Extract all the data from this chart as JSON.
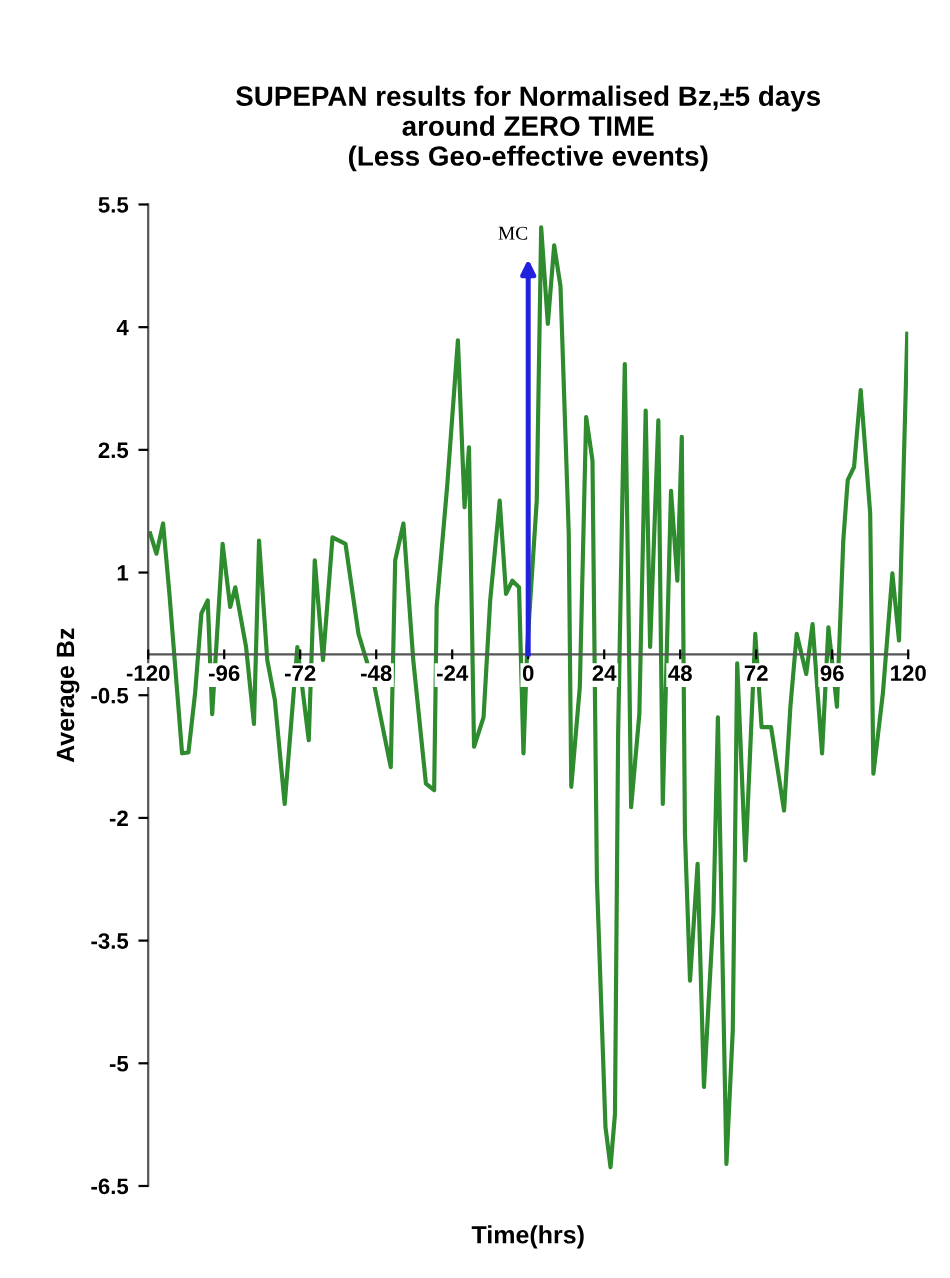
{
  "chart_data": {
    "type": "line",
    "title": "SUPEPAN results for Normalised Bz,±5 days\naround ZERO TIME\n(Less Geo-effective events)",
    "xlabel": "Time(hrs)",
    "ylabel": "Average Bz",
    "series": [
      {
        "color": "#2e8b2e",
        "x": [
          -119.4,
          -117.4,
          -115.3,
          -113.3,
          -109.3,
          -107.3,
          -105.2,
          -103.2,
          -101.2,
          -99.8,
          -96.5,
          -94.1,
          -92.5,
          -89.1,
          -86.6,
          -85,
          -82.4,
          -80,
          -76.9,
          -72.9,
          -69.3,
          -67.4,
          -64.8,
          -61.8,
          -57.7,
          -53.6,
          -48.5,
          -43.4,
          -42,
          -39.4,
          -36.3,
          -32.3,
          -29.7,
          -28.9,
          -25.6,
          -22.2,
          -20.1,
          -18.7,
          -17.1,
          -14.1,
          -12,
          -9,
          -7,
          -5,
          -2.9,
          -1.5,
          -0.3,
          2.7,
          4.1,
          6.2,
          8.2,
          10.2,
          12.8,
          13.6,
          16.3,
          18.3,
          20.3,
          21.7,
          24.4,
          26,
          27.4,
          28.4,
          30.5,
          31.5,
          32.5,
          35.1,
          37.1,
          38.5,
          41.1,
          42.5,
          45.1,
          47.1,
          48.5,
          49.5,
          51.1,
          53.5,
          55.5,
          58.5,
          59.9,
          62.6,
          64.6,
          66,
          68.6,
          71.7,
          73.7,
          76.7,
          80.8,
          82.8,
          84.8,
          87.8,
          89.8,
          92.8,
          94.8,
          97.5,
          99.5,
          100.9,
          102.9,
          105,
          108,
          109,
          112,
          115,
          117.1,
          119.7
        ],
        "values": [
          1.48,
          1.23,
          1.6,
          0.74,
          -1.21,
          -1.2,
          -0.48,
          0.5,
          0.66,
          -0.73,
          1.35,
          0.58,
          0.82,
          0.09,
          -0.85,
          1.39,
          -0.07,
          -0.56,
          -1.83,
          0.09,
          -1.05,
          1.15,
          -0.07,
          1.43,
          1.35,
          0.25,
          -0.4,
          -1.38,
          1.15,
          1.6,
          -0.07,
          -1.58,
          -1.66,
          0.58,
          2.05,
          3.84,
          1.8,
          2.53,
          -1.13,
          -0.77,
          0.66,
          1.88,
          0.74,
          0.9,
          0.82,
          -1.21,
          0.09,
          1.88,
          5.22,
          4.04,
          5.0,
          4.5,
          1.48,
          -1.62,
          -0.4,
          2.9,
          2.37,
          -2.76,
          -5.78,
          -6.27,
          -5.62,
          -0.97,
          3.55,
          1.07,
          -1.87,
          -0.73,
          2.98,
          0.09,
          2.86,
          -1.83,
          2.0,
          0.9,
          2.66,
          -2.19,
          -3.99,
          -2.56,
          -5.29,
          -3.18,
          -0.77,
          -6.23,
          -4.6,
          -0.11,
          -2.52,
          0.25,
          -0.89,
          -0.89,
          -1.91,
          -0.64,
          0.25,
          -0.24,
          0.37,
          -1.21,
          0.33,
          -0.64,
          1.39,
          2.13,
          2.29,
          3.23,
          1.72,
          -1.46,
          -0.48,
          0.99,
          0.17,
          3.92
        ]
      }
    ],
    "xlim": [
      -120,
      120
    ],
    "xticks": [
      -120,
      -96,
      -72,
      -48,
      -24,
      0,
      24,
      48,
      72,
      96,
      120
    ],
    "ylim": [
      -6.5,
      5.5
    ],
    "yticks": [
      -6.5,
      -5,
      -3.5,
      -2,
      -0.5,
      1,
      2.5,
      4,
      5.5
    ],
    "ref_lines": [
      {
        "axis": "x",
        "value": 0,
        "label": "MC",
        "color": "#2222dd"
      }
    ],
    "grid": false,
    "marker": "none",
    "line_style": "solid"
  }
}
